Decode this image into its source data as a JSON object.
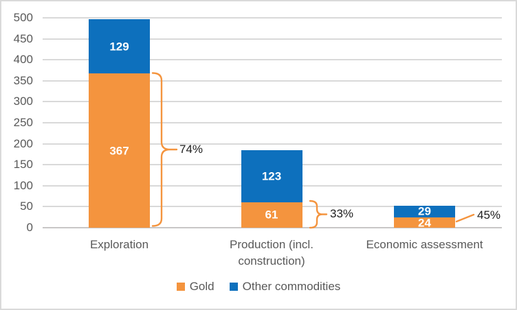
{
  "chart_data": {
    "type": "bar",
    "stacked": true,
    "title": "",
    "categories": [
      "Exploration",
      "Production (incl. construction)",
      "Economic assessment"
    ],
    "series": [
      {
        "name": "Gold",
        "color": "#F4943E",
        "values": [
          367,
          61,
          24
        ]
      },
      {
        "name": "Other commodities",
        "color": "#0D70BD",
        "values": [
          129,
          123,
          29
        ]
      }
    ],
    "totals": [
      496,
      184,
      53
    ],
    "annotations": [
      {
        "category": "Exploration",
        "series": "Gold",
        "label": "74%",
        "style": "brace"
      },
      {
        "category": "Production (incl. construction)",
        "series": "Gold",
        "label": "33%",
        "style": "brace"
      },
      {
        "category": "Economic assessment",
        "series": "Gold",
        "label": "45%",
        "style": "leader-line"
      }
    ],
    "ylim": [
      0,
      500
    ],
    "ytick_interval": 50,
    "yticks": [
      0,
      50,
      100,
      150,
      200,
      250,
      300,
      350,
      400,
      450,
      500
    ],
    "grid": true,
    "value_labels": true,
    "legend_position": "bottom"
  },
  "legend": {
    "items": [
      {
        "label": "Gold",
        "color": "#F4943E"
      },
      {
        "label": "Other commodities",
        "color": "#0D70BD"
      }
    ]
  },
  "colors": {
    "background": "#FFFFFF",
    "border": "#D9D9D9",
    "gridline": "#D9D9D9",
    "axis_line": "#C8C6C6",
    "tick_text": "#595959",
    "category_text": "#595959",
    "legend_text": "#595959",
    "value_text": "#FFFFFF",
    "annotation": "#F4943E",
    "annotation_text": "#202020"
  }
}
